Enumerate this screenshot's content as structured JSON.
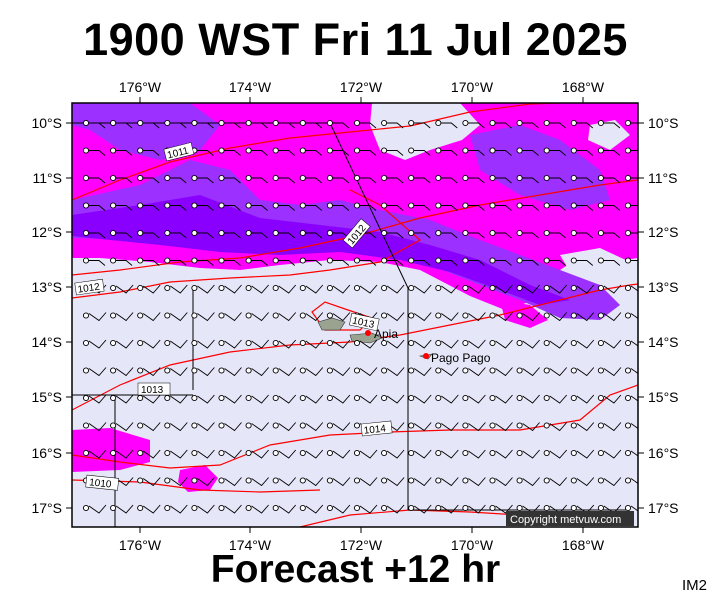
{
  "title": "1900 WST Fri 11 Jul 2025",
  "subtitle": "Forecast +12 hr",
  "product_code": "IM2",
  "copyright": "Copyright metvuw.com",
  "map": {
    "lon_labels": [
      "176°W",
      "174°W",
      "172°W",
      "170°W",
      "168°W"
    ],
    "lat_labels": [
      "10°S",
      "11°S",
      "12°S",
      "13°S",
      "14°S",
      "15°S",
      "16°S",
      "17°S"
    ],
    "cities": [
      {
        "name": "Apia"
      },
      {
        "name": "Pago Pago"
      }
    ],
    "isobar_labels": [
      "1011",
      "1012",
      "1012",
      "1013",
      "1013",
      "1014",
      "1010"
    ]
  },
  "colors": {
    "background_shade": "#e6e6f9",
    "magenta": "#ff00ff",
    "violet": "#9b30ff",
    "purple_deep": "#8a00ff",
    "isobar": "#ff0000",
    "land": "#99a38f",
    "city": "#ff0000"
  }
}
